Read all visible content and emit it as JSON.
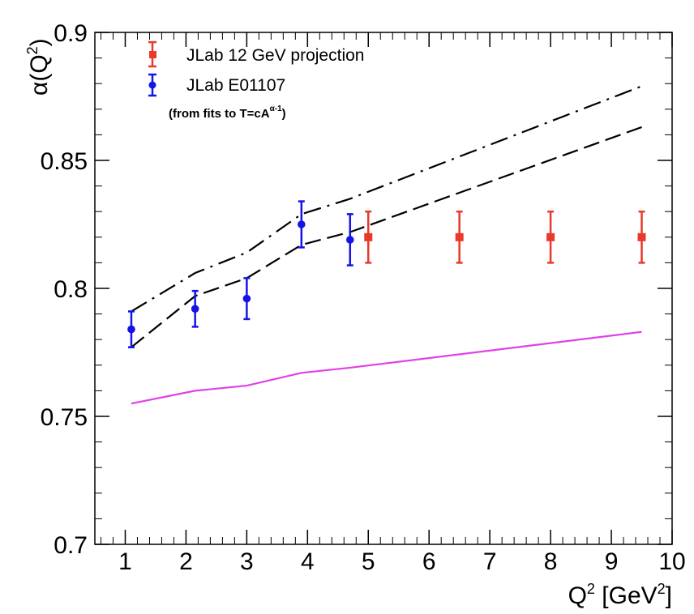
{
  "chart_data": {
    "type": "scatter",
    "xlim": [
      0.5,
      10
    ],
    "ylim": [
      0.7,
      0.9
    ],
    "xlabel": {
      "base": "Q",
      "sup": "2",
      "rest": " [GeV",
      "sup2": "2",
      "end": "]"
    },
    "ylabel": {
      "base": "α(Q",
      "sup": "2",
      "end": ")"
    },
    "x_ticks": [
      1,
      2,
      3,
      4,
      5,
      6,
      7,
      8,
      9,
      10
    ],
    "y_ticks": [
      0.7,
      0.75,
      0.8,
      0.85,
      0.9
    ],
    "y_tick_labels": [
      "0.7",
      "0.75",
      "0.8",
      "0.85",
      "0.9"
    ],
    "grid": false,
    "legend_position": "top-left",
    "note": {
      "text": "(from fits to T=cA",
      "sup": "α-1",
      "end": ")"
    },
    "colors": {
      "projection": "#e8392a",
      "e01107": "#1414e6",
      "magenta": "#e040e8",
      "curve": "#000000"
    },
    "series": [
      {
        "name": "JLab 12 GeV projection",
        "kind": "points",
        "marker": "square",
        "color": "#e8392a",
        "x": [
          5.0,
          6.5,
          8.0,
          9.5
        ],
        "y": [
          0.82,
          0.82,
          0.82,
          0.82
        ],
        "err": [
          0.01,
          0.01,
          0.01,
          0.01
        ]
      },
      {
        "name": "JLab E01107",
        "kind": "points",
        "marker": "circle",
        "color": "#1414e6",
        "x": [
          1.1,
          2.15,
          3.0,
          3.9,
          4.7
        ],
        "y": [
          0.784,
          0.792,
          0.796,
          0.825,
          0.819
        ],
        "err": [
          0.007,
          0.007,
          0.008,
          0.009,
          0.01
        ]
      },
      {
        "kind": "line",
        "style": "dashdot",
        "color": "#000000",
        "x": [
          1.1,
          2.15,
          3.0,
          3.9,
          4.7,
          9.5
        ],
        "y": [
          0.791,
          0.806,
          0.814,
          0.829,
          0.835,
          0.879
        ]
      },
      {
        "kind": "line",
        "style": "dash",
        "color": "#000000",
        "x": [
          1.1,
          2.15,
          3.0,
          3.9,
          4.7,
          9.5
        ],
        "y": [
          0.777,
          0.797,
          0.804,
          0.817,
          0.822,
          0.863
        ]
      },
      {
        "kind": "line",
        "style": "solid",
        "color": "#e040e8",
        "x": [
          1.1,
          2.15,
          3.0,
          3.9,
          4.7,
          9.5
        ],
        "y": [
          0.755,
          0.76,
          0.762,
          0.767,
          0.769,
          0.783
        ]
      }
    ]
  }
}
